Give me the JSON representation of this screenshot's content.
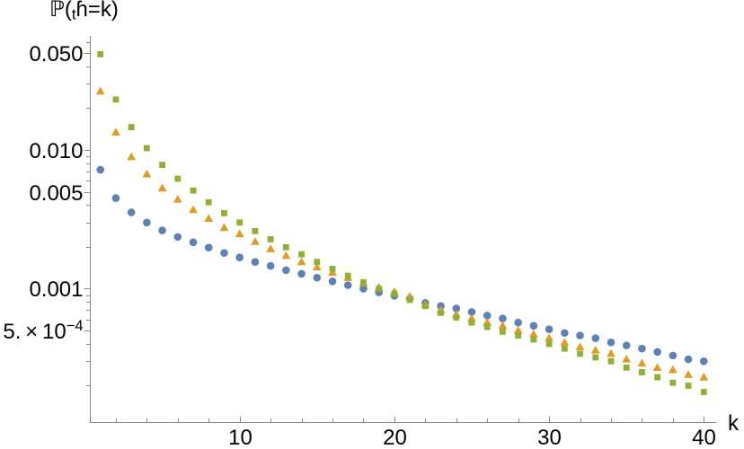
{
  "figure": {
    "background": "#ffffff",
    "axis_line_color": "#8a8a8a",
    "label_color": "#000000"
  },
  "chart_data": {
    "type": "scatter",
    "title": "",
    "ylabel_parts": {
      "prefix": "ℙ(",
      "subscript": "t",
      "suffix": "ɦ=k)"
    },
    "xlabel": "k",
    "x_axis": {
      "scale": "linear",
      "range": [
        0.4,
        40.7
      ],
      "major_ticks": [
        {
          "value": 10,
          "label": "10"
        },
        {
          "value": 20,
          "label": "20"
        },
        {
          "value": 30,
          "label": "30"
        },
        {
          "value": 40,
          "label": "40"
        }
      ],
      "minor_ticks": [
        2,
        4,
        6,
        8,
        12,
        14,
        16,
        18,
        22,
        24,
        26,
        28,
        32,
        34,
        36,
        38
      ]
    },
    "y_axis": {
      "scale": "log",
      "range": [
        0.00015,
        0.066
      ],
      "major_ticks": [
        {
          "value": 0.05,
          "label": "0.050"
        },
        {
          "value": 0.01,
          "label": "0.010"
        },
        {
          "value": 0.005,
          "label": "0.005"
        },
        {
          "value": 0.001,
          "label": "0.001"
        },
        {
          "value": 0.0005,
          "label": "5. × 10",
          "sup": "−4"
        }
      ],
      "minor_ticks": [
        0.06,
        0.04,
        0.03,
        0.02,
        0.009,
        0.008,
        0.007,
        0.006,
        0.004,
        0.003,
        0.002,
        0.0009,
        0.0008,
        0.0007,
        0.0006,
        0.0004,
        0.0003,
        0.0002
      ]
    },
    "x": [
      1,
      2,
      3,
      4,
      5,
      6,
      7,
      8,
      9,
      10,
      11,
      12,
      13,
      14,
      15,
      16,
      17,
      18,
      19,
      20,
      21,
      22,
      23,
      24,
      25,
      26,
      27,
      28,
      29,
      30,
      31,
      32,
      33,
      34,
      35,
      36,
      37,
      38,
      39,
      40
    ],
    "series": [
      {
        "name": "blue-circles",
        "marker": "circle",
        "color": "#5E81B5",
        "values": [
          0.0072,
          0.0045,
          0.00355,
          0.003,
          0.00263,
          0.00236,
          0.00216,
          0.00198,
          0.00181,
          0.00168,
          0.00156,
          0.00146,
          0.00136,
          0.00128,
          0.0012,
          0.00113,
          0.00106,
          0.001,
          0.00094,
          0.00089,
          0.00085,
          0.00079,
          0.00075,
          0.00072,
          0.00068,
          0.00064,
          0.00061,
          0.00057,
          0.00054,
          0.00051,
          0.00048,
          0.00046,
          0.00044,
          0.00041,
          0.00039,
          0.00037,
          0.00035,
          0.00033,
          0.00031,
          0.0003
        ]
      },
      {
        "name": "orange-triangles",
        "marker": "triangle",
        "color": "#E19C24",
        "values": [
          0.0265,
          0.0134,
          0.0089,
          0.0067,
          0.0053,
          0.0044,
          0.0037,
          0.0032,
          0.00275,
          0.00248,
          0.00218,
          0.00193,
          0.00173,
          0.00156,
          0.00143,
          0.00131,
          0.0012,
          0.0011,
          0.00102,
          0.00095,
          0.00088,
          0.00077,
          0.0007,
          0.00065,
          0.00061,
          0.00057,
          0.00054,
          0.0005,
          0.00047,
          0.00044,
          0.00041,
          0.00038,
          0.00036,
          0.00034,
          0.00031,
          0.00029,
          0.00027,
          0.00026,
          0.00024,
          0.00023
        ]
      },
      {
        "name": "green-squares",
        "marker": "square",
        "color": "#8FB032",
        "values": [
          0.049,
          0.0231,
          0.0146,
          0.0103,
          0.0078,
          0.0062,
          0.0051,
          0.0042,
          0.0035,
          0.003,
          0.0026,
          0.00227,
          0.00199,
          0.00177,
          0.00156,
          0.00139,
          0.00124,
          0.00111,
          0.001,
          0.00092,
          0.00083,
          0.00075,
          0.00067,
          0.00062,
          0.00057,
          0.00053,
          0.00049,
          0.00046,
          0.00043,
          0.0004,
          0.00037,
          0.00034,
          0.00032,
          0.0003,
          0.00027,
          0.00025,
          0.00023,
          0.00021,
          0.0002,
          0.00018
        ]
      }
    ],
    "legend": {
      "visible": false
    }
  }
}
